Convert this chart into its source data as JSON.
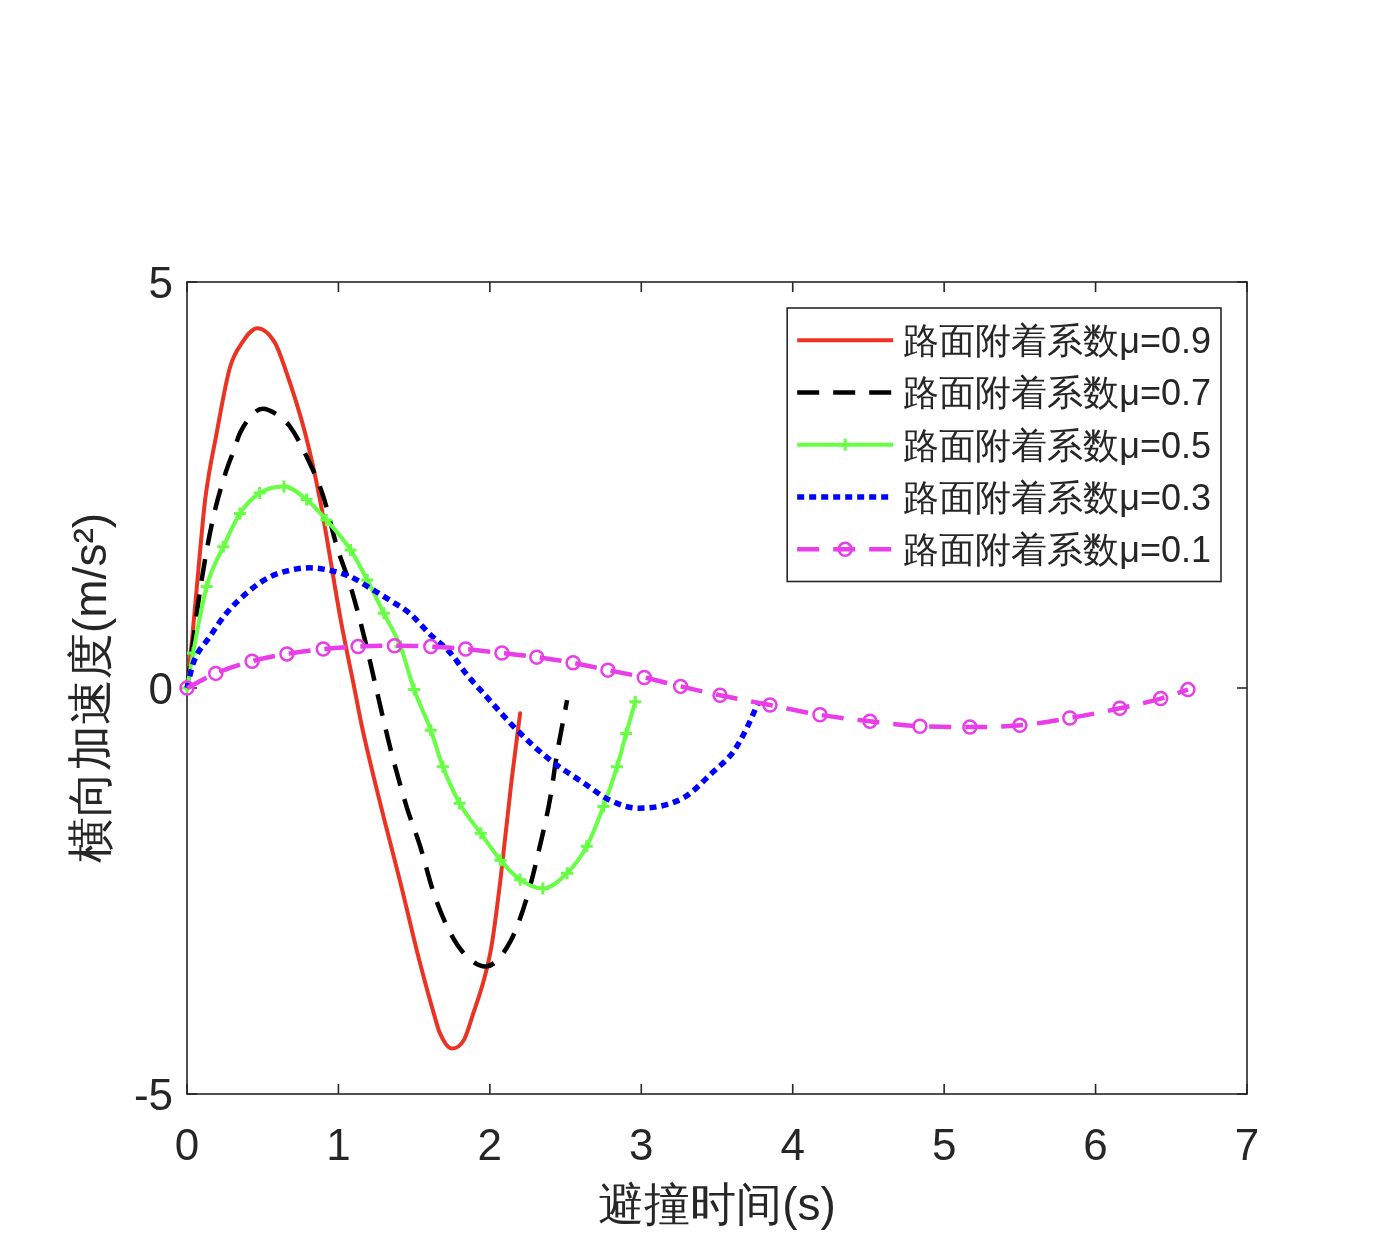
{
  "chart_data": {
    "type": "line",
    "xlabel": "避撞时间(s)",
    "ylabel": "横向加速度(m/s²)",
    "xlim": [
      0,
      7
    ],
    "xticks": [
      0,
      1,
      2,
      3,
      4,
      5,
      6,
      7
    ],
    "ylim": [
      -5,
      5
    ],
    "yticks": [
      -5,
      0,
      5
    ],
    "grid": false,
    "legend": "top right",
    "series": [
      {
        "name": "路面附着系数μ=0.9",
        "color": "#ea3323",
        "line_style": "solid",
        "marker": "none",
        "x": [
          0,
          0.035,
          0.075,
          0.12,
          0.196,
          0.284,
          0.363,
          0.464,
          0.581,
          0.645,
          0.78,
          0.878,
          1.015,
          1.105,
          1.156,
          1.3,
          1.41,
          1.52,
          1.63,
          1.67,
          1.75,
          1.83,
          1.89,
          1.96,
          2.01,
          2.07,
          2.144,
          2.2
        ],
        "values": [
          0,
          0.63,
          1.45,
          2.32,
          3.14,
          3.95,
          4.25,
          4.43,
          4.25,
          3.95,
          3.14,
          2.32,
          0.84,
          0,
          -0.48,
          -1.6,
          -2.4,
          -3.25,
          -4.01,
          -4.25,
          -4.44,
          -4.33,
          -4.01,
          -3.6,
          -3.19,
          -2.36,
          -1.13,
          -0.31
        ]
      },
      {
        "name": "路面附着系数μ=0.7",
        "color": "#000000",
        "line_style": "dashed",
        "marker": "none",
        "x": [
          0,
          0.09,
          0.17,
          0.26,
          0.31,
          0.35,
          0.44,
          0.5,
          0.6,
          0.68,
          0.79,
          0.9,
          0.99,
          1.08,
          1.17,
          1.26,
          1.34,
          1.45,
          1.54,
          1.63,
          1.74,
          1.85,
          1.97,
          2.13,
          2.24,
          2.33,
          2.4,
          2.44,
          2.51
        ],
        "values": [
          0,
          1.25,
          2.07,
          2.68,
          2.93,
          3.14,
          3.38,
          3.44,
          3.36,
          3.22,
          2.85,
          2.36,
          1.74,
          1.25,
          0.63,
          -0.09,
          -0.72,
          -1.46,
          -1.95,
          -2.53,
          -3.02,
          -3.31,
          -3.43,
          -3.14,
          -2.61,
          -1.95,
          -1.34,
          -0.85,
          -0.15
        ]
      },
      {
        "name": "路面附着系数μ=0.5",
        "color": "#66ff44",
        "line_style": "solid",
        "marker": "cross",
        "x": [
          0,
          0.04,
          0.13,
          0.24,
          0.35,
          0.48,
          0.64,
          0.79,
          0.92,
          1.08,
          1.19,
          1.3,
          1.41,
          1.5,
          1.61,
          1.69,
          1.8,
          1.94,
          2.07,
          2.2,
          2.35,
          2.51,
          2.64,
          2.75,
          2.84,
          2.9,
          2.96
        ],
        "values": [
          0,
          0.43,
          1.25,
          1.74,
          2.15,
          2.4,
          2.48,
          2.32,
          2.07,
          1.7,
          1.33,
          0.92,
          0.51,
          -0.02,
          -0.52,
          -0.97,
          -1.42,
          -1.79,
          -2.12,
          -2.36,
          -2.47,
          -2.28,
          -1.95,
          -1.46,
          -0.97,
          -0.56,
          -0.17
        ]
      },
      {
        "name": "路面附着系数μ=0.3",
        "color": "#0000ff",
        "line_style": "dotted",
        "marker": "none",
        "x": [
          0,
          0.04,
          0.15,
          0.26,
          0.42,
          0.55,
          0.68,
          0.81,
          0.94,
          1.08,
          1.21,
          1.34,
          1.47,
          1.6,
          1.74,
          1.85,
          1.96,
          2.18,
          2.4,
          2.62,
          2.79,
          2.98,
          3.28,
          3.47,
          3.61,
          3.7,
          3.77
        ],
        "values": [
          0,
          0.3,
          0.63,
          0.92,
          1.21,
          1.37,
          1.45,
          1.48,
          1.45,
          1.37,
          1.23,
          1.08,
          0.92,
          0.67,
          0.43,
          0.16,
          -0.07,
          -0.52,
          -0.89,
          -1.17,
          -1.38,
          -1.48,
          -1.35,
          -1.04,
          -0.78,
          -0.48,
          -0.19
        ]
      },
      {
        "name": "路面附着系数μ=0.1",
        "color": "#e83de8",
        "line_style": "dashed",
        "marker": "circle",
        "x": [
          0,
          0.19,
          0.43,
          0.66,
          0.9,
          1.13,
          1.37,
          1.61,
          1.84,
          2.08,
          2.31,
          2.55,
          2.78,
          3.02,
          3.26,
          3.52,
          3.85,
          4.18,
          4.51,
          4.84,
          5.17,
          5.5,
          5.83,
          6.16,
          6.43,
          6.61
        ],
        "values": [
          0,
          0.18,
          0.33,
          0.42,
          0.48,
          0.51,
          0.52,
          0.51,
          0.48,
          0.43,
          0.38,
          0.31,
          0.22,
          0.13,
          0.02,
          -0.09,
          -0.21,
          -0.33,
          -0.41,
          -0.47,
          -0.48,
          -0.46,
          -0.37,
          -0.25,
          -0.13,
          -0.02
        ]
      }
    ]
  }
}
